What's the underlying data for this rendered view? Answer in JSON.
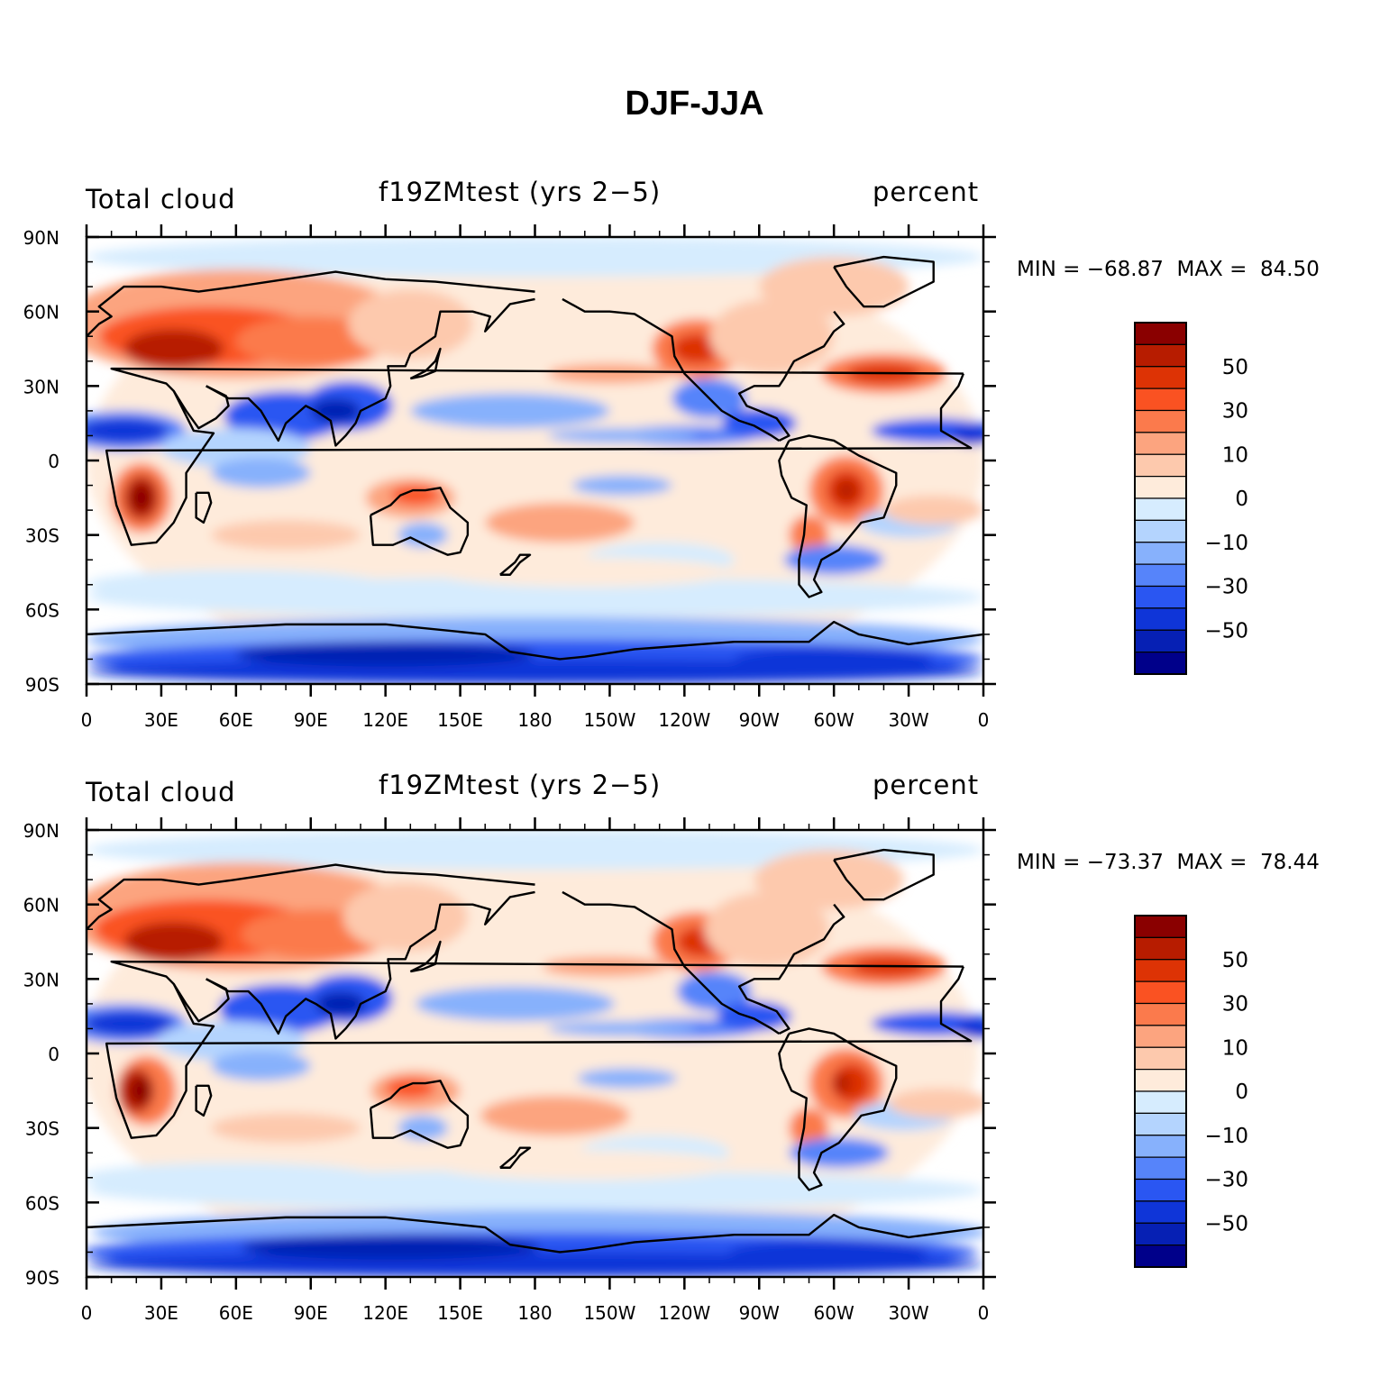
{
  "title": "DJF-JJA",
  "colorbar": {
    "labels": [
      "50",
      "30",
      "10",
      "0",
      "−10",
      "−30",
      "−50"
    ],
    "colors": [
      "#8a0000",
      "#b71c00",
      "#dd3305",
      "#fa5222",
      "#fb7a4c",
      "#fca47f",
      "#fdc9ad",
      "#feebdb",
      "#d6ecfe",
      "#b4d4fe",
      "#87b1fc",
      "#5684fa",
      "#2a56f2",
      "#0f35d8",
      "#0620b4",
      "#00008a"
    ]
  },
  "panels": [
    {
      "left_label": "Total cloud",
      "center_label": "f19ZMtest (yrs 2−5)",
      "right_label": "percent",
      "min_label": "MIN = −68.87",
      "max_label": "MAX =  84.50",
      "min": -68.87,
      "max": 84.5
    },
    {
      "left_label": "Total cloud",
      "center_label": "f19ZMtest (yrs 2−5)",
      "right_label": "percent",
      "min_label": "MIN = −73.37",
      "max_label": "MAX =  78.44",
      "min": -73.37,
      "max": 78.44
    }
  ],
  "axes": {
    "lat_labels": [
      "90N",
      "60N",
      "30N",
      "0",
      "30S",
      "60S",
      "90S"
    ],
    "lon_labels": [
      "0",
      "30E",
      "60E",
      "90E",
      "120E",
      "150E",
      "180",
      "150W",
      "120W",
      "90W",
      "60W",
      "30W",
      "0"
    ]
  }
}
